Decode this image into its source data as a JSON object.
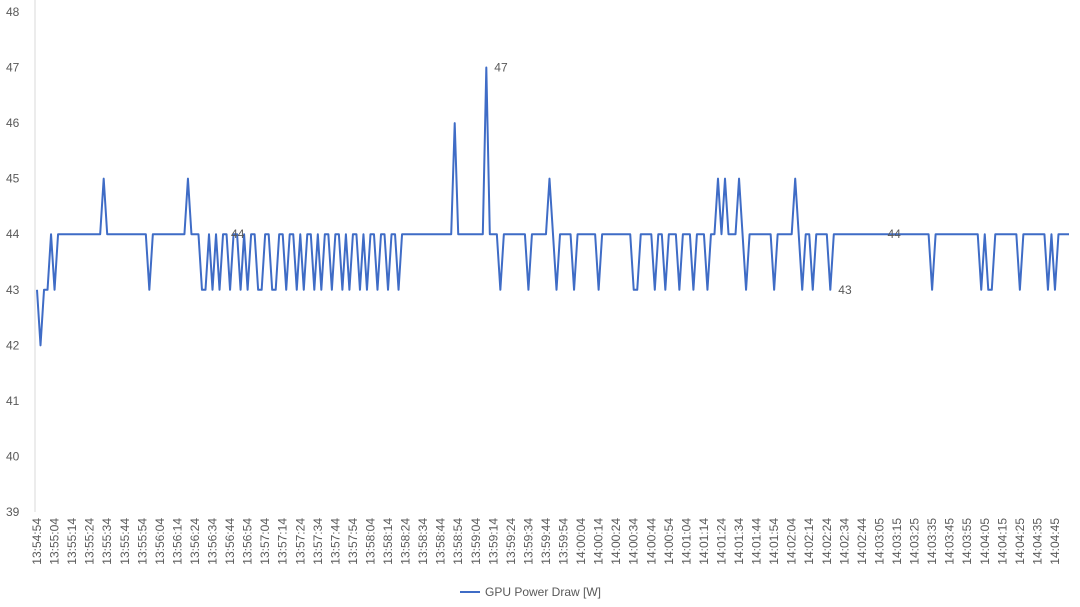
{
  "chart_data": {
    "type": "line",
    "legend": "bottom",
    "series": [
      {
        "name": "GPU Power Draw [W]",
        "color": "#3f6cc6",
        "values": [
          43,
          42,
          43,
          43,
          44,
          43,
          44,
          44,
          44,
          44,
          44,
          44,
          44,
          44,
          44,
          44,
          44,
          44,
          44,
          45,
          44,
          44,
          44,
          44,
          44,
          44,
          44,
          44,
          44,
          44,
          44,
          44,
          43,
          44,
          44,
          44,
          44,
          44,
          44,
          44,
          44,
          44,
          44,
          45,
          44,
          44,
          44,
          43,
          43,
          44,
          43,
          44,
          43,
          44,
          44,
          43,
          44,
          44,
          43,
          44,
          43,
          44,
          44,
          43,
          43,
          44,
          44,
          43,
          43,
          44,
          44,
          43,
          44,
          44,
          43,
          44,
          43,
          44,
          44,
          43,
          44,
          43,
          44,
          44,
          43,
          44,
          44,
          43,
          44,
          43,
          44,
          44,
          43,
          44,
          43,
          44,
          44,
          43,
          44,
          44,
          43,
          44,
          44,
          43,
          44,
          44,
          44,
          44,
          44,
          44,
          44,
          44,
          44,
          44,
          44,
          44,
          44,
          44,
          44,
          46,
          44,
          44,
          44,
          44,
          44,
          44,
          44,
          44,
          47,
          44,
          44,
          44,
          43,
          44,
          44,
          44,
          44,
          44,
          44,
          44,
          43,
          44,
          44,
          44,
          44,
          44,
          45,
          44,
          43,
          44,
          44,
          44,
          44,
          43,
          44,
          44,
          44,
          44,
          44,
          44,
          43,
          44,
          44,
          44,
          44,
          44,
          44,
          44,
          44,
          44,
          43,
          43,
          44,
          44,
          44,
          44,
          43,
          44,
          44,
          43,
          44,
          44,
          44,
          43,
          44,
          44,
          44,
          43,
          44,
          44,
          44,
          43,
          44,
          44,
          45,
          44,
          45,
          44,
          44,
          44,
          45,
          44,
          43,
          44,
          44,
          44,
          44,
          44,
          44,
          44,
          43,
          44,
          44,
          44,
          44,
          44,
          45,
          44,
          43,
          44,
          44,
          43,
          44,
          44,
          44,
          44,
          43,
          44,
          44,
          44,
          44,
          44,
          44,
          44,
          44,
          44,
          44,
          44,
          44,
          44,
          44,
          44,
          44,
          44,
          44,
          44,
          44,
          44,
          44,
          44,
          44,
          44,
          44,
          44,
          44,
          43,
          44,
          44,
          44,
          44,
          44,
          44,
          44,
          44,
          44,
          44,
          44,
          44,
          44,
          43,
          44,
          43,
          43,
          44,
          44,
          44,
          44,
          44,
          44,
          44,
          43,
          44,
          44,
          44,
          44,
          44,
          44,
          44,
          43,
          44,
          43,
          44,
          44,
          44,
          44
        ],
        "labeled_points": [
          53,
          128,
          226,
          240
        ]
      }
    ],
    "categories": [
      "13:54:54",
      null,
      null,
      null,
      null,
      "13:55:04",
      null,
      null,
      null,
      null,
      "13:55:14",
      null,
      null,
      null,
      null,
      "13:55:24",
      null,
      null,
      null,
      null,
      "13:55:34",
      null,
      null,
      null,
      null,
      "13:55:44",
      null,
      null,
      null,
      null,
      "13:55:54",
      null,
      null,
      null,
      null,
      "13:56:04",
      null,
      null,
      null,
      null,
      "13:56:14",
      null,
      null,
      null,
      null,
      "13:56:24",
      null,
      null,
      null,
      null,
      "13:56:34",
      null,
      null,
      null,
      null,
      "13:56:44",
      null,
      null,
      null,
      null,
      "13:56:54",
      null,
      null,
      null,
      null,
      "13:57:04",
      null,
      null,
      null,
      null,
      "13:57:14",
      null,
      null,
      null,
      null,
      "13:57:24",
      null,
      null,
      null,
      null,
      "13:57:34",
      null,
      null,
      null,
      null,
      "13:57:44",
      null,
      null,
      null,
      null,
      "13:57:54",
      null,
      null,
      null,
      null,
      "13:58:04",
      null,
      null,
      null,
      null,
      "13:58:14",
      null,
      null,
      null,
      null,
      "13:58:24",
      null,
      null,
      null,
      null,
      "13:58:34",
      null,
      null,
      null,
      null,
      "13:58:44",
      null,
      null,
      null,
      null,
      "13:58:54",
      null,
      null,
      null,
      null,
      "13:59:04",
      null,
      null,
      null,
      null,
      "13:59:14",
      null,
      null,
      null,
      null,
      "13:59:24",
      null,
      null,
      null,
      null,
      "13:59:34",
      null,
      null,
      null,
      null,
      "13:59:44",
      null,
      null,
      null,
      null,
      "13:59:54",
      null,
      null,
      null,
      null,
      "14:00:04",
      null,
      null,
      null,
      null,
      "14:00:14",
      null,
      null,
      null,
      null,
      "14:00:24",
      null,
      null,
      null,
      null,
      "14:00:34",
      null,
      null,
      null,
      null,
      "14:00:44",
      null,
      null,
      null,
      null,
      "14:00:54",
      null,
      null,
      null,
      null,
      "14:01:04",
      null,
      null,
      null,
      null,
      "14:01:14",
      null,
      null,
      null,
      null,
      "14:01:24",
      null,
      null,
      null,
      null,
      "14:01:34",
      null,
      null,
      null,
      null,
      "14:01:44",
      null,
      null,
      null,
      null,
      "14:01:54",
      null,
      null,
      null,
      null,
      "14:02:04",
      null,
      null,
      null,
      null,
      "14:02:14",
      null,
      null,
      null,
      null,
      "14:02:24",
      null,
      null,
      null,
      null,
      "14:02:34",
      null,
      null,
      null,
      null,
      "14:02:44",
      null,
      null,
      null,
      null,
      "14:03:05",
      null,
      null,
      null,
      null,
      "14:03:15",
      null,
      null,
      null,
      null,
      "14:03:25",
      null,
      null,
      null,
      null,
      "14:03:35",
      null,
      null,
      null,
      null,
      "14:03:45",
      null,
      null,
      null,
      null,
      "14:03:55",
      null,
      null,
      null,
      null,
      "14:04:05",
      null,
      null,
      null,
      null,
      "14:04:15",
      null,
      null,
      null,
      null,
      "14:04:25",
      null,
      null,
      null,
      null,
      "14:04:35",
      null,
      null,
      null,
      null,
      "14:04:45",
      null,
      null,
      null,
      null
    ],
    "ylim": [
      39,
      48
    ],
    "yticks": [
      39,
      40,
      41,
      42,
      43,
      44,
      45,
      46,
      47,
      48
    ],
    "grid": false
  }
}
